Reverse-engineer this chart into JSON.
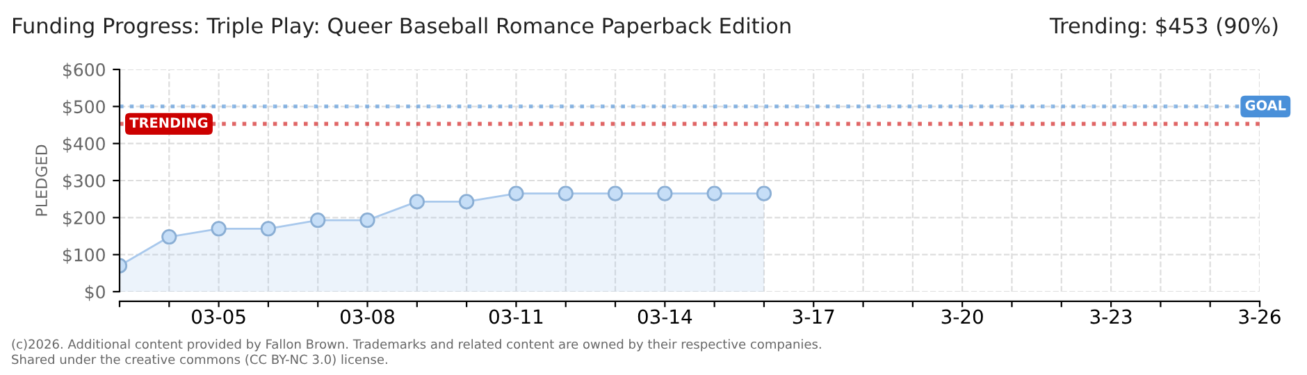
{
  "chart_data": {
    "type": "area",
    "title": "Funding Progress: Triple Play: Queer Baseball Romance Paperback Edition",
    "subtitle": "Trending: $453 (90%)",
    "ylabel": "PLEDGED",
    "categories": [
      null,
      null,
      "03-05",
      null,
      null,
      "03-08",
      null,
      null,
      "03-11",
      null,
      null,
      "03-14",
      null,
      null,
      "3-17",
      null,
      null,
      "3-20",
      null,
      null,
      "3-23",
      null,
      null,
      "3-26"
    ],
    "series": [
      {
        "color": "#a8c8ec",
        "values": [
          70,
          148,
          170,
          170,
          193,
          193,
          243,
          243,
          265,
          265,
          265,
          265,
          265,
          265,
          null,
          null,
          null,
          null,
          null,
          null,
          null,
          null,
          null,
          null
        ]
      }
    ],
    "marker": "circle",
    "ylim": [
      0,
      600
    ],
    "yticks": [
      {
        "value": 0,
        "label": "$0"
      },
      {
        "value": 100,
        "label": "$100"
      },
      {
        "value": 200,
        "label": "$200"
      },
      {
        "value": 300,
        "label": "$300"
      },
      {
        "value": 400,
        "label": "$400"
      },
      {
        "value": 500,
        "label": "$500"
      },
      {
        "value": 600,
        "label": "$600"
      }
    ],
    "grid": true,
    "ref_lines": [
      {
        "axis": "y",
        "value": 500,
        "label": "GOAL",
        "color": "#4a90d9",
        "line_style": "dotted"
      },
      {
        "axis": "y",
        "value": 453,
        "label": "TRENDING",
        "color": "#cc0000",
        "line_style": "dotted"
      }
    ],
    "annotations": [
      "(c)2026. Additional content provided by Fallon Brown. Trademarks and related content are owned by their respective companies.",
      "Shared under the creative commons (CC BY-NC 3.0) license."
    ]
  }
}
